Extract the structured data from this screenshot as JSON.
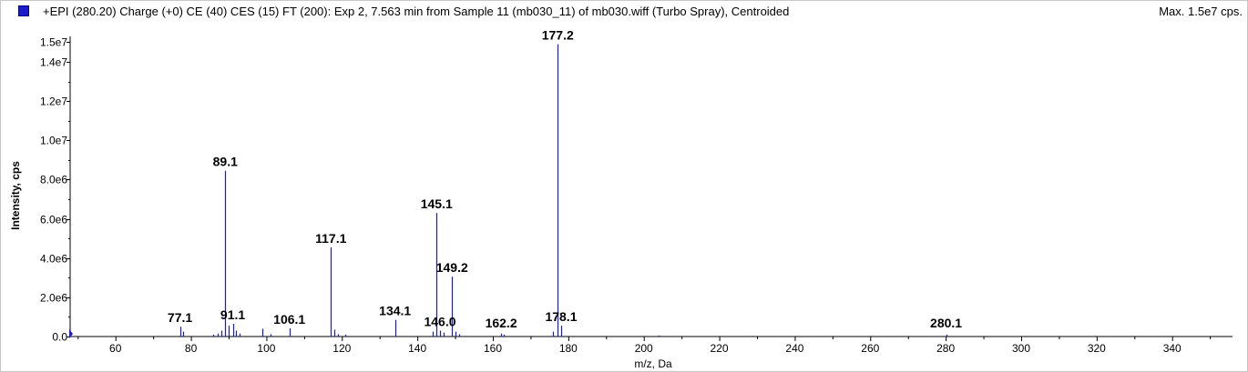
{
  "header": {
    "title": "+EPI (280.20) Charge (+0) CE (40) CES (15) FT (200): Exp 2, 7.563 min from Sample 11 (mb030_11) of mb030.wiff (Turbo Spray), Centroided",
    "max_label": "Max. 1.5e7 cps.",
    "swatch_color": "#1c1ccc"
  },
  "chart_data": {
    "type": "bar",
    "title": "+EPI (280.20) Charge (+0) CE (40) CES (15) FT (200): Exp 2, 7.563 min from Sample 11 (mb030_11) of mb030.wiff (Turbo Spray), Centroided",
    "xlabel": "m/z, Da",
    "ylabel": "Intensity, cps",
    "xlim": [
      48,
      356
    ],
    "ylim": [
      0,
      15300000
    ],
    "x_ticks": [
      60,
      80,
      100,
      120,
      140,
      160,
      180,
      200,
      220,
      240,
      260,
      280,
      300,
      320,
      340
    ],
    "y_ticks": [
      {
        "value": 0,
        "label": "0.0"
      },
      {
        "value": 2000000,
        "label": "2.0e6"
      },
      {
        "value": 4000000,
        "label": "4.0e6"
      },
      {
        "value": 6000000,
        "label": "6.0e6"
      },
      {
        "value": 8000000,
        "label": "8.0e6"
      },
      {
        "value": 10000000,
        "label": "1.0e7"
      },
      {
        "value": 12000000,
        "label": "1.2e7"
      },
      {
        "value": 14000000,
        "label": "1.4e7"
      },
      {
        "value": 15000000,
        "label": "1.5e7"
      }
    ],
    "color": "#1c1ccc",
    "peaks": [
      {
        "mz": 77.1,
        "intensity": 500000
      },
      {
        "mz": 78.0,
        "intensity": 250000
      },
      {
        "mz": 86.0,
        "intensity": 100000
      },
      {
        "mz": 87.0,
        "intensity": 150000
      },
      {
        "mz": 88.0,
        "intensity": 300000
      },
      {
        "mz": 89.1,
        "intensity": 8450000
      },
      {
        "mz": 90.0,
        "intensity": 550000
      },
      {
        "mz": 91.1,
        "intensity": 650000
      },
      {
        "mz": 92.0,
        "intensity": 300000
      },
      {
        "mz": 93.0,
        "intensity": 150000
      },
      {
        "mz": 99.0,
        "intensity": 400000
      },
      {
        "mz": 101.0,
        "intensity": 120000
      },
      {
        "mz": 106.1,
        "intensity": 420000
      },
      {
        "mz": 117.1,
        "intensity": 4550000
      },
      {
        "mz": 118.0,
        "intensity": 350000
      },
      {
        "mz": 119.0,
        "intensity": 120000
      },
      {
        "mz": 121.0,
        "intensity": 100000
      },
      {
        "mz": 134.1,
        "intensity": 850000
      },
      {
        "mz": 144.0,
        "intensity": 250000
      },
      {
        "mz": 145.1,
        "intensity": 6300000
      },
      {
        "mz": 146.0,
        "intensity": 300000
      },
      {
        "mz": 147.0,
        "intensity": 200000
      },
      {
        "mz": 149.2,
        "intensity": 3050000
      },
      {
        "mz": 150.0,
        "intensity": 250000
      },
      {
        "mz": 151.0,
        "intensity": 120000
      },
      {
        "mz": 162.2,
        "intensity": 150000
      },
      {
        "mz": 163.0,
        "intensity": 100000
      },
      {
        "mz": 176.0,
        "intensity": 250000
      },
      {
        "mz": 177.2,
        "intensity": 14900000
      },
      {
        "mz": 178.1,
        "intensity": 550000
      },
      {
        "mz": 204.0,
        "intensity": 50000
      },
      {
        "mz": 280.1,
        "intensity": 100000
      }
    ],
    "peak_labels": [
      {
        "mz": 77.1,
        "label": "77.1"
      },
      {
        "mz": 89.1,
        "label": "89.1"
      },
      {
        "mz": 91.1,
        "label": "91.1"
      },
      {
        "mz": 106.1,
        "label": "106.1"
      },
      {
        "mz": 117.1,
        "label": "117.1"
      },
      {
        "mz": 134.1,
        "label": "134.1"
      },
      {
        "mz": 145.1,
        "label": "145.1"
      },
      {
        "mz": 146.0,
        "label": "146.0"
      },
      {
        "mz": 149.2,
        "label": "149.2"
      },
      {
        "mz": 162.2,
        "label": "162.2"
      },
      {
        "mz": 177.2,
        "label": "177.2"
      },
      {
        "mz": 178.1,
        "label": "178.1"
      },
      {
        "mz": 280.1,
        "label": "280.1"
      }
    ]
  }
}
